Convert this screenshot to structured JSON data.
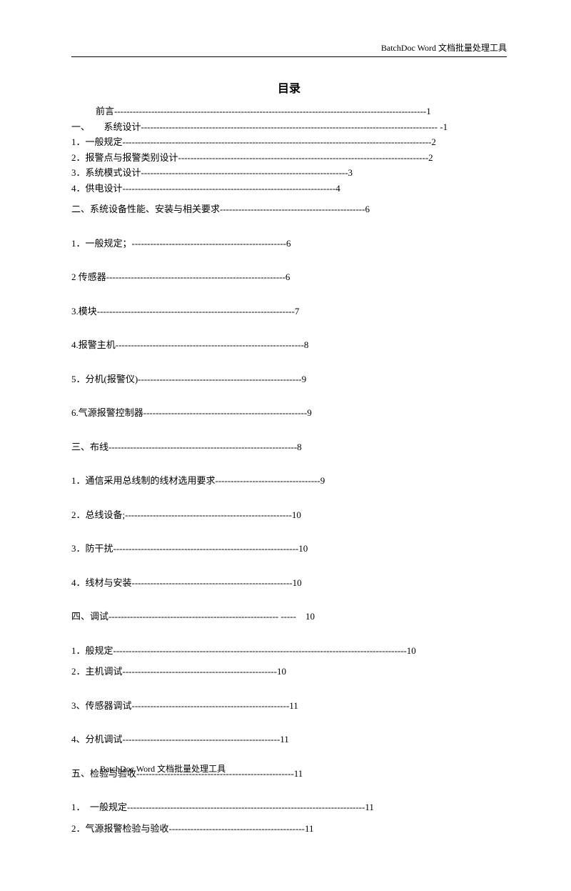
{
  "header": "BatchDoc Word 文档批量处理工具",
  "footer": "BatchDoc Word 文档批量处理工具",
  "title": "目录",
  "lines": [
    {
      "text": "前言-----------------------------------------------------------------------------------------------------1",
      "cls": "tight indent"
    },
    {
      "text": "一、　　系统设计------------------------------------------------------------------------------------------------ -1",
      "cls": "tight"
    },
    {
      "text": "1．一般规定----------------------------------------------------------------------------------------------------2",
      "cls": "tight"
    },
    {
      "text": "2．报警点与报警类别设计---------------------------------------------------------------------------------2",
      "cls": "tight"
    },
    {
      "text": "3．系统模式设计-------------------------------------------------------------------3",
      "cls": "tight"
    },
    {
      "text": "4．供电设计---------------------------------------------------------------------4",
      "cls": "tight"
    },
    {
      "text": "二、系统设备性能、安装与相关要求-----------------------------------------------6",
      "cls": "spaced"
    },
    {
      "text": "1．一般规定；--------------------------------------------------6",
      "cls": "spaced"
    },
    {
      "text": "2 传感器----------------------------------------------------------6",
      "cls": "spaced"
    },
    {
      "text": "3.模块----------------------------------------------------------------7",
      "cls": "spaced"
    },
    {
      "text": "4.报警主机-------------------------------------------------------------8",
      "cls": "spaced"
    },
    {
      "text": "5．分机(报警仪)-----------------------------------------------------9",
      "cls": "spaced"
    },
    {
      "text": "6.气源报警控制器-----------------------------------------------------9",
      "cls": "spaced"
    },
    {
      "text": "三、布线-------------------------------------------------------------8",
      "cls": "spaced"
    },
    {
      "text": "1．通信采用总线制的线材选用要求----------------------------------9",
      "cls": "spaced"
    },
    {
      "text": "2．总线设备;------------------------------------------------------10",
      "cls": "spaced"
    },
    {
      "text": "3．防干扰------------------------------------------------------------10",
      "cls": "spaced"
    },
    {
      "text": "4．线材与安装----------------------------------------------------10",
      "cls": "spaced"
    },
    {
      "text": "四、调试------------------------------------------------------- -----　10",
      "cls": "spaced"
    },
    {
      "text": "1．般规定-----------------------------------------------------------------------------------------------10",
      "cls": "tight"
    },
    {
      "text": "2．主机调试--------------------------------------------------10",
      "cls": "spaced"
    },
    {
      "text": "3、传感器调试---------------------------------------------------11",
      "cls": "spaced"
    },
    {
      "text": "4、分机调试---------------------------------------------------11",
      "cls": "spaced"
    },
    {
      "text": "五、检验与验收---------------------------------------------------11",
      "cls": "spaced"
    },
    {
      "text": "1．　一般规定-----------------------------------------------------------------------------11",
      "cls": "tight"
    },
    {
      "text": "2．气源报警检验与验收--------------------------------------------11",
      "cls": "spaced"
    }
  ]
}
